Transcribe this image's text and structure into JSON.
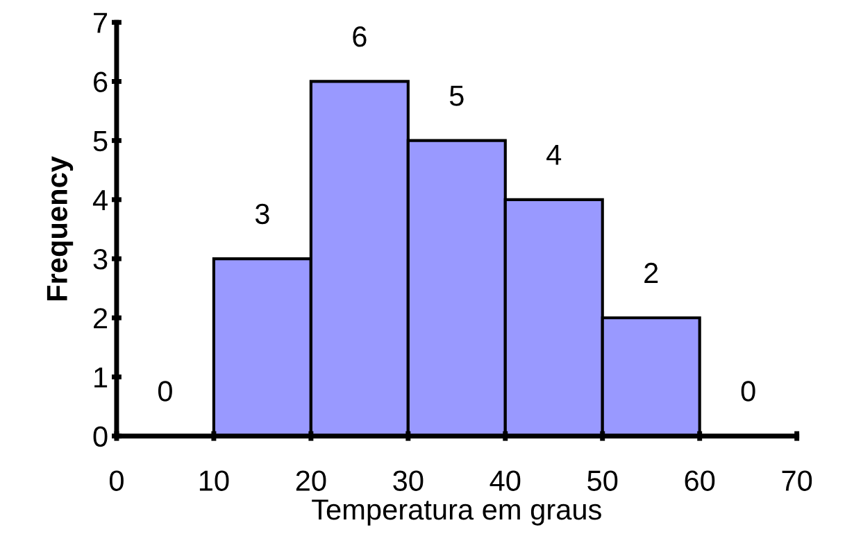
{
  "chart_data": {
    "type": "histogram",
    "xlabel": "Temperatura em graus",
    "ylabel": "Frequency",
    "bins": [
      0,
      10,
      20,
      30,
      40,
      50,
      60,
      70
    ],
    "values": [
      0,
      3,
      6,
      5,
      4,
      2,
      0
    ],
    "color": "#9999ff",
    "xlim": [
      0,
      70
    ],
    "xticks": [
      0,
      10,
      20,
      30,
      40,
      50,
      60,
      70
    ],
    "ylim": [
      0,
      7
    ],
    "yticks": [
      0,
      1,
      2,
      3,
      4,
      5,
      6,
      7
    ],
    "data_labels": true,
    "grid": false,
    "legend": false
  }
}
